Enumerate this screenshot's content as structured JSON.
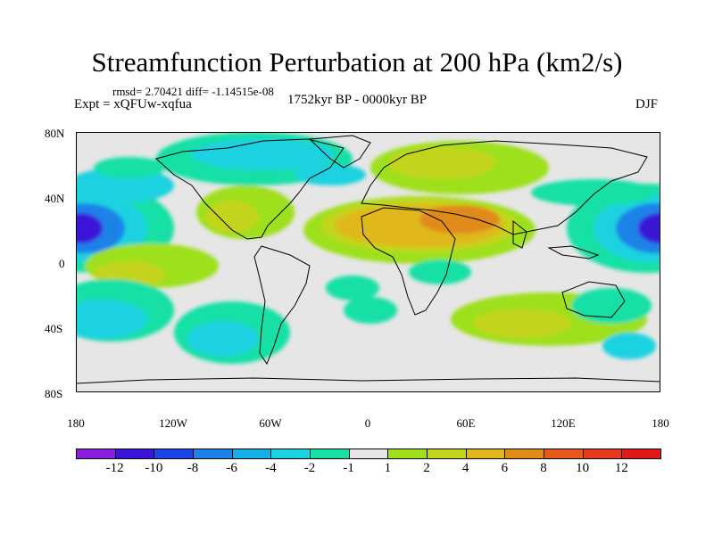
{
  "title": "Streamfunction Perturbation at 200 hPa (km2/s)",
  "stats_text": "rmsd= 2.70421 diff= -1.14515e-08",
  "experiment_label": "Expt = xQFUw-xqfua",
  "period_label": "1752kyr BP - 0000kyr BP",
  "season_label": "DJF",
  "y_axis": {
    "ticks": [
      "80N",
      "40N",
      "0",
      "40S",
      "80S"
    ]
  },
  "x_axis": {
    "ticks": [
      "180",
      "120W",
      "60W",
      "0",
      "60E",
      "120E",
      "180"
    ]
  },
  "colorbar": {
    "labels": [
      "-12",
      "-10",
      "-8",
      "-6",
      "-4",
      "-2",
      "-1",
      "1",
      "2",
      "4",
      "6",
      "8",
      "10",
      "12"
    ],
    "colors": [
      "#8a1fe0",
      "#3a14d8",
      "#1a46e8",
      "#1a82e8",
      "#16b0e8",
      "#1ad2e0",
      "#16e0a6",
      "#e6e6e6",
      "#9ee01a",
      "#c4d41a",
      "#e0b81a",
      "#e08a1a",
      "#e85a1a",
      "#e83a1a",
      "#e01a1a"
    ]
  },
  "palette": {
    "background": "#e6e6e6",
    "coastline": "#000000"
  }
}
